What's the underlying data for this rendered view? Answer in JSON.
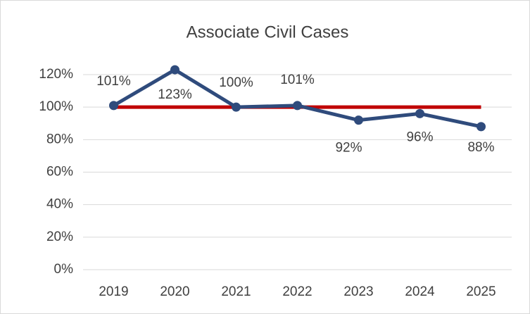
{
  "chart_data": {
    "type": "line",
    "title": "Associate Civil Cases",
    "categories": [
      "2019",
      "2020",
      "2021",
      "2022",
      "2023",
      "2024",
      "2025"
    ],
    "series": [
      {
        "color": "#c00000",
        "values": [
          100,
          100,
          100,
          100,
          100,
          100,
          100
        ]
      },
      {
        "color": "#2f4b7c",
        "values": [
          101,
          123,
          100,
          101,
          92,
          96,
          88
        ],
        "value_labels": [
          "101%",
          "123%",
          "100%",
          "101%",
          "92%",
          "96%",
          "88%"
        ]
      }
    ],
    "ylim": [
      0,
      120
    ],
    "yticks": [
      {
        "value": 0,
        "label": "0%"
      },
      {
        "value": 20,
        "label": "20%"
      },
      {
        "value": 40,
        "label": "40%"
      },
      {
        "value": 60,
        "label": "60%"
      },
      {
        "value": 80,
        "label": "80%"
      },
      {
        "value": 100,
        "label": "100%"
      },
      {
        "value": 120,
        "label": "120%"
      }
    ],
    "grid": true
  }
}
